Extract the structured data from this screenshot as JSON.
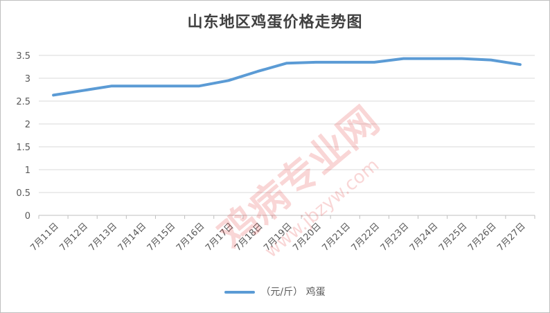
{
  "chart_data": {
    "type": "line",
    "title": "山东地区鸡蛋价格走势图",
    "categories": [
      "7月11日",
      "7月12日",
      "7月13日",
      "7月14日",
      "7月15日",
      "7月16日",
      "7月17日",
      "7月18日",
      "7月19日",
      "7月20日",
      "7月21日",
      "7月22日",
      "7月23日",
      "7月24日",
      "7月25日",
      "7月26日",
      "7月27日"
    ],
    "series": [
      {
        "name": "（元/斤） 鸡蛋",
        "values": [
          2.63,
          2.73,
          2.83,
          2.83,
          2.83,
          2.83,
          2.95,
          3.15,
          3.33,
          3.35,
          3.35,
          3.35,
          3.43,
          3.43,
          3.43,
          3.4,
          3.3
        ]
      }
    ],
    "y_ticks": [
      "0",
      "0.5",
      "1",
      "1.5",
      "2",
      "2.5",
      "3",
      "3.5"
    ],
    "ylim": [
      0,
      3.5
    ],
    "grid": true,
    "legend_position": "bottom",
    "line_color": "#5b9bd5"
  },
  "watermark": {
    "text": "鸡病专业网",
    "url": "www.jbzyw.com"
  }
}
